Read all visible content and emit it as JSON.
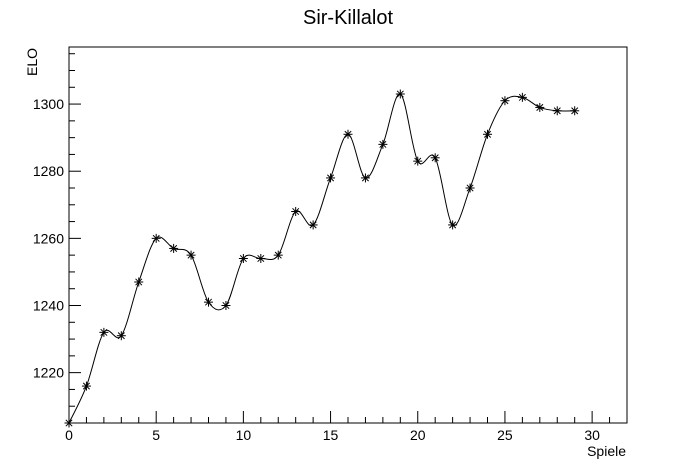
{
  "chart_data": {
    "type": "line",
    "title": "Sir-Killalot",
    "xlabel": "Spiele",
    "ylabel": "ELO",
    "xlim": [
      0,
      32
    ],
    "ylim": [
      1205,
      1317
    ],
    "xticks": [
      0,
      5,
      10,
      15,
      20,
      25,
      30
    ],
    "yticks": [
      1220,
      1240,
      1260,
      1280,
      1300
    ],
    "grid": false,
    "marker": "asterisk",
    "smooth": true,
    "series": [
      {
        "x": [
          0,
          1,
          2,
          3,
          4,
          5,
          6,
          7,
          8,
          9,
          10,
          11,
          12,
          13,
          14,
          15,
          16,
          17,
          18,
          19,
          20,
          21,
          22,
          23,
          24,
          25,
          26,
          27,
          28,
          29
        ],
        "y": [
          1205,
          1216,
          1232,
          1231,
          1247,
          1260,
          1257,
          1255,
          1241,
          1240,
          1254,
          1254,
          1255,
          1268,
          1264,
          1278,
          1291,
          1278,
          1288,
          1303,
          1283,
          1284,
          1264,
          1275,
          1291,
          1301,
          1302,
          1299,
          1298,
          1298
        ]
      }
    ]
  }
}
